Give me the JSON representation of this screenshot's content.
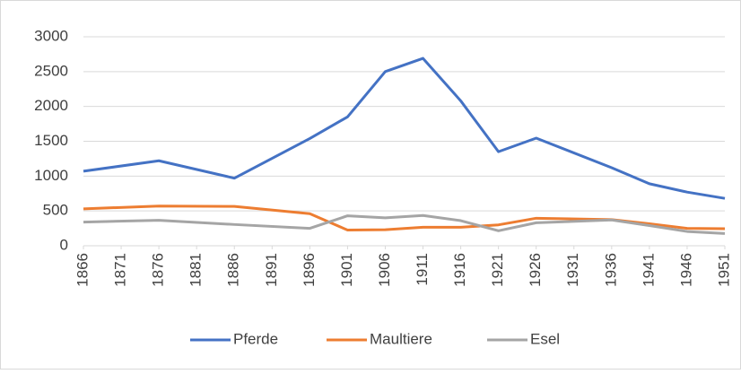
{
  "chart_data": {
    "type": "line",
    "x": [
      1866,
      1876,
      1886,
      1896,
      1901,
      1906,
      1911,
      1916,
      1921,
      1926,
      1936,
      1941,
      1946,
      1951
    ],
    "series": [
      {
        "name": "Pferde",
        "color": "#4472c4",
        "values": [
          1070,
          1220,
          970,
          1540,
          1850,
          2500,
          2690,
          2080,
          1350,
          1545,
          1120,
          890,
          770,
          680
        ]
      },
      {
        "name": "Maultiere",
        "color": "#ed7d31",
        "values": [
          530,
          570,
          565,
          460,
          225,
          230,
          265,
          265,
          300,
          395,
          375,
          315,
          250,
          245
        ]
      },
      {
        "name": "Esel",
        "color": "#a5a5a5",
        "values": [
          340,
          365,
          305,
          250,
          430,
          400,
          435,
          360,
          215,
          330,
          370,
          290,
          205,
          175
        ]
      }
    ],
    "xlim": [
      1866,
      1951
    ],
    "xticks": [
      1866,
      1871,
      1876,
      1881,
      1886,
      1891,
      1896,
      1901,
      1906,
      1911,
      1916,
      1921,
      1926,
      1931,
      1936,
      1941,
      1946,
      1951
    ],
    "ylim": [
      0,
      3000
    ],
    "yticks": [
      0,
      500,
      1000,
      1500,
      2000,
      2500,
      3000
    ],
    "grid": true,
    "legend": "bottom"
  }
}
